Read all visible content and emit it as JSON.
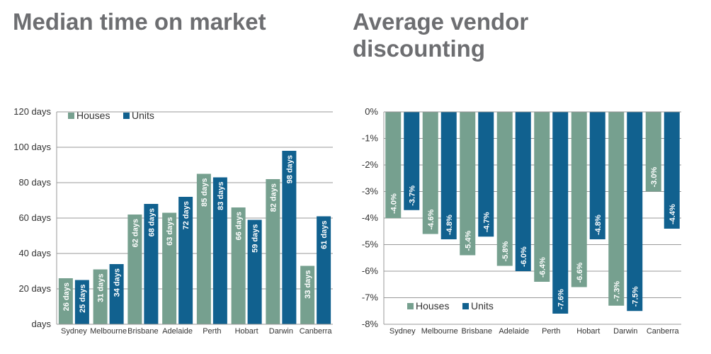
{
  "titles": {
    "left": "Median time on market",
    "right": "Average vendor discounting"
  },
  "colors": {
    "houses": "#76a08f",
    "units": "#11618f",
    "grid": "#999999"
  },
  "chart_data": [
    {
      "type": "bar",
      "title": "Median time on market",
      "categories": [
        "Sydney",
        "Melbourne",
        "Brisbane",
        "Adelaide",
        "Perth",
        "Hobart",
        "Darwin",
        "Canberra"
      ],
      "series": [
        {
          "name": "Houses",
          "values": [
            26,
            31,
            62,
            63,
            85,
            66,
            82,
            33
          ],
          "labels": [
            "26 days",
            "31 days",
            "62 days",
            "63 days",
            "85 days",
            "66 days",
            "82 days",
            "33 days"
          ]
        },
        {
          "name": "Units",
          "values": [
            25,
            34,
            68,
            72,
            83,
            59,
            98,
            61
          ],
          "labels": [
            "25 days",
            "34 days",
            "68 days",
            "72 days",
            "83 days",
            "59 days",
            "98 days",
            "61 days"
          ]
        }
      ],
      "ylim": [
        0,
        120
      ],
      "yticks": [
        0,
        20,
        40,
        60,
        80,
        100,
        120
      ],
      "ytick_labels": [
        "days",
        "20 days",
        "40 days",
        "60 days",
        "80 days",
        "100 days",
        "120 days"
      ],
      "grid": true,
      "legend": "top-left"
    },
    {
      "type": "bar",
      "title": "Average vendor discounting",
      "categories": [
        "Sydney",
        "Melbourne",
        "Brisbane",
        "Adelaide",
        "Perth",
        "Hobart",
        "Darwin",
        "Canberra"
      ],
      "series": [
        {
          "name": "Houses",
          "values": [
            -4.0,
            -4.6,
            -5.4,
            -5.8,
            -6.4,
            -6.6,
            -7.3,
            -3.0
          ],
          "labels": [
            "-4.0%",
            "-4.6%",
            "-5.4%",
            "-5.8%",
            "-6.4%",
            "-6.6%",
            "-7.3%",
            "-3.0%"
          ]
        },
        {
          "name": "Units",
          "values": [
            -3.7,
            -4.8,
            -4.7,
            -6.0,
            -7.6,
            -4.8,
            -7.5,
            -4.4
          ],
          "labels": [
            "-3.7%",
            "-4.8%",
            "-4.7%",
            "-6.0%",
            "-7.6%",
            "-4.8%",
            "-7.5%",
            "-4.4%"
          ]
        }
      ],
      "ylim": [
        -8,
        0
      ],
      "yticks": [
        0,
        -1,
        -2,
        -3,
        -4,
        -5,
        -6,
        -7,
        -8
      ],
      "ytick_labels": [
        "0%",
        "-1%",
        "-2%",
        "-3%",
        "-4%",
        "-5%",
        "-6%",
        "-7%",
        "-8%"
      ],
      "grid": true,
      "legend": "bottom-left"
    }
  ]
}
